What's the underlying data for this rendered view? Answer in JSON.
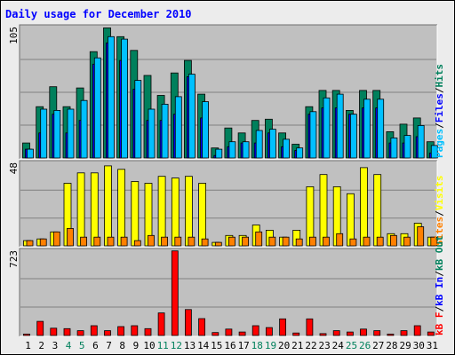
{
  "chart_data": {
    "type": "bar",
    "title": "Daily usage for December 2010",
    "categories": [
      "1",
      "2",
      "3",
      "4",
      "5",
      "6",
      "7",
      "8",
      "9",
      "10",
      "11",
      "12",
      "13",
      "14",
      "15",
      "16",
      "17",
      "18",
      "19",
      "20",
      "21",
      "22",
      "23",
      "24",
      "25",
      "26",
      "27",
      "28",
      "29",
      "30",
      "31"
    ],
    "weekend_days": [
      "4",
      "5",
      "11",
      "12",
      "18",
      "19",
      "25",
      "26"
    ],
    "grid": true,
    "colors": {
      "hits": "#00805c",
      "files": "#0000ff",
      "pages": "#00c0ff",
      "visits": "#ffff00",
      "sites": "#ff8000",
      "kb_in": "#0000ff",
      "kb_out": "#00805c",
      "kb_f": "#ff0000",
      "plot_bg": "#c0c0c0",
      "grid": "#808080",
      "title": "#0000ff",
      "weekday_label": "#000000",
      "weekend_label": "#00805c"
    },
    "panels": [
      {
        "name": "requests",
        "max_label": "105",
        "ylim": [
          0,
          105
        ],
        "legend": [
          {
            "text": "Pages",
            "color": "#00c0ff"
          },
          {
            "text": "/",
            "color": "#000000"
          },
          {
            "text": "Files",
            "color": "#0000ff"
          },
          {
            "text": "/",
            "color": "#000000"
          },
          {
            "text": "Hits",
            "color": "#00805c"
          }
        ],
        "series": [
          {
            "name": "Hits",
            "color": "#00805c",
            "values": [
              12,
              41,
              57,
              41,
              56,
              85,
              104,
              97,
              86,
              66,
              50,
              68,
              78,
              51,
              8,
              24,
              20,
              30,
              31,
              20,
              11,
              41,
              54,
              54,
              38,
              54,
              54,
              21,
              27,
              32,
              13
            ]
          },
          {
            "name": "Files",
            "color": "#0000ff",
            "values": [
              7,
              20,
              35,
              20,
              30,
              75,
              92,
              78,
              55,
              30,
              30,
              35,
              65,
              32,
              2,
              9,
              12,
              12,
              20,
              9,
              6,
              35,
              40,
              40,
              35,
              40,
              40,
              12,
              12,
              17,
              4
            ]
          },
          {
            "name": "Pages",
            "color": "#00c0ff",
            "values": [
              7,
              39,
              38,
              39,
              46,
              80,
              97,
              95,
              62,
              39,
              43,
              49,
              67,
              45,
              7,
              13,
              13,
              22,
              23,
              15,
              8,
              37,
              48,
              51,
              35,
              47,
              47,
              16,
              18,
              26,
              10
            ]
          }
        ]
      },
      {
        "name": "visits",
        "max_label": "48",
        "ylim": [
          0,
          48
        ],
        "legend": [
          {
            "text": "Sites",
            "color": "#ff8000"
          },
          {
            "text": "/",
            "color": "#000000"
          },
          {
            "text": "Visits",
            "color": "#ffff00"
          }
        ],
        "series": [
          {
            "name": "Visits",
            "color": "#ffff00",
            "values": [
              3,
              4,
              8,
              36,
              42,
              42,
              46,
              44,
              37,
              36,
              40,
              39,
              40,
              36,
              2,
              6,
              6,
              12,
              9,
              5,
              9,
              34,
              41,
              34,
              30,
              45,
              41,
              7,
              7,
              13,
              5
            ]
          },
          {
            "name": "Sites",
            "color": "#ff8000",
            "values": [
              3,
              4,
              8,
              10,
              5,
              5,
              5,
              5,
              3,
              6,
              5,
              5,
              5,
              4,
              2,
              5,
              5,
              8,
              5,
              5,
              4,
              5,
              5,
              7,
              4,
              5,
              5,
              6,
              5,
              11,
              5
            ]
          }
        ]
      },
      {
        "name": "kbytes",
        "max_label": "723",
        "ylim": [
          0,
          723
        ],
        "legend": [
          {
            "text": "kB F",
            "color": "#ff0000"
          },
          {
            "text": "/",
            "color": "#000000"
          },
          {
            "text": "kB In",
            "color": "#0000ff"
          },
          {
            "text": "/",
            "color": "#000000"
          },
          {
            "text": "kB Out",
            "color": "#00805c"
          }
        ],
        "series": [
          {
            "name": "kB F",
            "color": "#ff0000",
            "values": [
              12,
              120,
              62,
              58,
              41,
              83,
              41,
              75,
              83,
              58,
              191,
              718,
              220,
              143,
              25,
              54,
              29,
              83,
              67,
              141,
              21,
              141,
              16,
              41,
              29,
              54,
              41,
              12,
              41,
              83,
              29
            ]
          }
        ]
      }
    ]
  }
}
